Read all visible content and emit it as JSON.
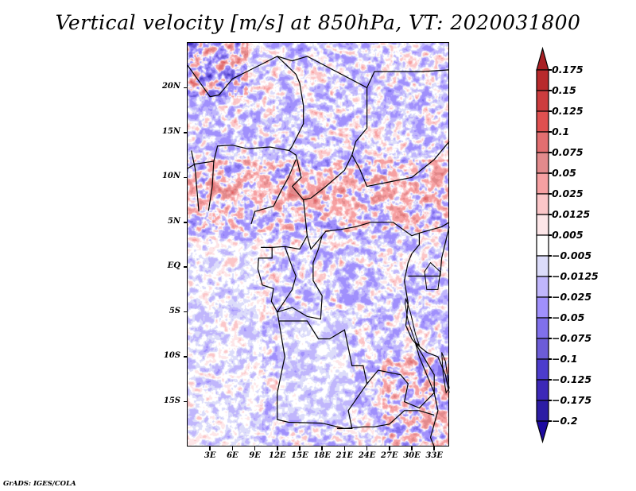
{
  "title": "Vertical velocity [m/s] at 850hPa, VT: 2020031800",
  "credit": "GrADS: IGES/COLA",
  "chart_data": {
    "type": "heatmap",
    "title": "Vertical velocity [m/s] at 850hPa, VT: 2020031800",
    "variable": "Vertical velocity",
    "units": "m/s",
    "level": "850hPa",
    "valid_time": "2020031800",
    "xlabel": "",
    "ylabel": "",
    "x_range_deg": [
      0,
      35
    ],
    "y_range_deg": [
      -20,
      25
    ],
    "lat_ticks": [
      {
        "value": 20,
        "label": "20N"
      },
      {
        "value": 15,
        "label": "15N"
      },
      {
        "value": 10,
        "label": "10N"
      },
      {
        "value": 5,
        "label": "5N"
      },
      {
        "value": 0,
        "label": "EQ"
      },
      {
        "value": -5,
        "label": "5S"
      },
      {
        "value": -10,
        "label": "10S"
      },
      {
        "value": -15,
        "label": "15S"
      }
    ],
    "lon_ticks": [
      {
        "value": 3,
        "label": "3E"
      },
      {
        "value": 6,
        "label": "6E"
      },
      {
        "value": 9,
        "label": "9E"
      },
      {
        "value": 12,
        "label": "12E"
      },
      {
        "value": 15,
        "label": "15E"
      },
      {
        "value": 18,
        "label": "18E"
      },
      {
        "value": 21,
        "label": "21E"
      },
      {
        "value": 24,
        "label": "24E"
      },
      {
        "value": 27,
        "label": "27E"
      },
      {
        "value": 30,
        "label": "30E"
      },
      {
        "value": 33,
        "label": "33E"
      }
    ],
    "colorbar": {
      "placement": "right",
      "levels": [
        0.175,
        0.15,
        0.125,
        0.1,
        0.075,
        0.05,
        0.025,
        0.0125,
        0.005,
        -0.005,
        -0.0125,
        -0.025,
        -0.05,
        -0.075,
        -0.1,
        -0.125,
        -0.175,
        -0.2
      ],
      "labels": [
        "0.175",
        "0.15",
        "0.125",
        "0.1",
        "0.075",
        "0.05",
        "0.025",
        "0.0125",
        "0.005",
        "−0.005",
        "−0.0125",
        "−0.025",
        "−0.05",
        "−0.075",
        "−0.1",
        "−0.125",
        "−0.175",
        "−0.2"
      ],
      "colors": [
        "#a82024",
        "#b82a2c",
        "#cc3c3e",
        "#e05050",
        "#e26e70",
        "#e28a8c",
        "#f6a0a2",
        "#fbc6c8",
        "#fde6e8",
        "#ffffff",
        "#dcdcfa",
        "#c0b6fc",
        "#a090fc",
        "#8070ec",
        "#6c5cd8",
        "#4c3ccc",
        "#3c28b8",
        "#2c1ca4",
        "#1e0aa0"
      ]
    },
    "description": "Filled contours of 850hPa vertical velocity over Central Africa (approx. 0E–35E, 20S–25N) with country borders overlaid; strong rising/sinking bands over Sahel (~5–12N) and southern Africa."
  }
}
